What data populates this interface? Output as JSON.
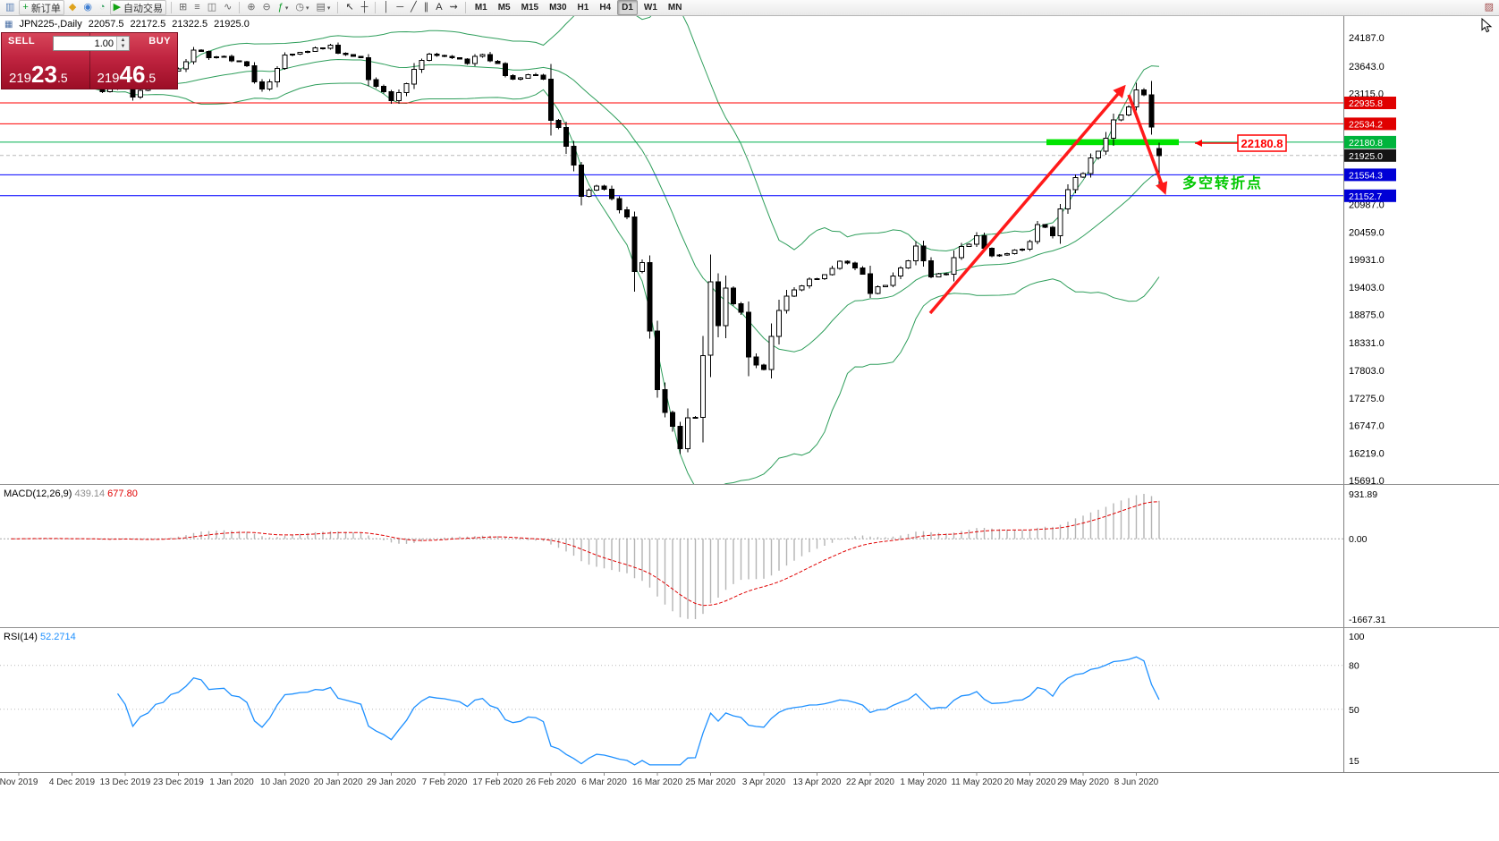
{
  "toolbar": {
    "items": [
      {
        "type": "icon",
        "name": "charts-toolbar-handle",
        "glyph": "▥",
        "color": "#5a7fb5"
      },
      {
        "type": "button",
        "name": "new-order-button",
        "glyph": "+",
        "color": "#0f9d2a",
        "label": "新订单"
      },
      {
        "type": "icon",
        "name": "metaeditor-icon",
        "glyph": "◆",
        "color": "#dfa31d"
      },
      {
        "type": "icon",
        "name": "profiles-icon",
        "glyph": "◉",
        "color": "#3f7fd2"
      },
      {
        "type": "icon",
        "name": "market-watch-icon",
        "glyph": "◔",
        "color": "#2e9e5b"
      },
      {
        "type": "button",
        "name": "autotrading-button",
        "glyph": "▶",
        "color": "#12a312",
        "label": "自动交易"
      },
      {
        "type": "sep"
      },
      {
        "type": "icon",
        "name": "tile-windows-icon",
        "glyph": "⊞",
        "color": "#666666"
      },
      {
        "type": "icon",
        "name": "bar-chart-icon",
        "glyph": "≡",
        "color": "#666666"
      },
      {
        "type": "icon",
        "name": "candlestick-chart-icon",
        "glyph": "◫",
        "color": "#666666"
      },
      {
        "type": "icon",
        "name": "line-chart-icon",
        "glyph": "∿",
        "color": "#666666"
      },
      {
        "type": "sep"
      },
      {
        "type": "icon",
        "name": "zoom-in-icon",
        "glyph": "⊕",
        "color": "#666666"
      },
      {
        "type": "icon",
        "name": "zoom-out-icon",
        "glyph": "⊖",
        "color": "#666666"
      },
      {
        "type": "icon",
        "name": "indicators-icon",
        "glyph": "ƒ",
        "color": "#0f9d2a",
        "dropdown": true
      },
      {
        "type": "icon",
        "name": "periods-icon",
        "glyph": "◷",
        "color": "#666666",
        "dropdown": true
      },
      {
        "type": "icon",
        "name": "templates-icon",
        "glyph": "▤",
        "color": "#666666",
        "dropdown": true
      },
      {
        "type": "sep"
      },
      {
        "type": "icon",
        "name": "cursor-icon",
        "glyph": "↖",
        "color": "#333333"
      },
      {
        "type": "icon",
        "name": "crosshair-icon",
        "glyph": "┼",
        "color": "#333333"
      },
      {
        "type": "sep"
      },
      {
        "type": "icon",
        "name": "vertical-line-icon",
        "glyph": "│",
        "color": "#333333"
      },
      {
        "type": "icon",
        "name": "horizontal-line-icon",
        "glyph": "─",
        "color": "#333333"
      },
      {
        "type": "icon",
        "name": "trendline-icon",
        "glyph": "╱",
        "color": "#333333"
      },
      {
        "type": "icon",
        "name": "equidistant-channel-icon",
        "glyph": "∥",
        "color": "#333333"
      },
      {
        "type": "icon",
        "name": "text-tool-icon",
        "glyph": "A",
        "color": "#333333"
      },
      {
        "type": "icon",
        "name": "arrows-tool-icon",
        "glyph": "⇝",
        "color": "#333333"
      },
      {
        "type": "sep"
      },
      {
        "type": "timeframes"
      },
      {
        "type": "spacer"
      },
      {
        "type": "icon",
        "name": "chart-properties-icon",
        "glyph": "▨",
        "color": "#a04848"
      }
    ],
    "timeframes": [
      "M1",
      "M5",
      "M15",
      "M30",
      "H1",
      "H4",
      "D1",
      "W1",
      "MN"
    ],
    "active_timeframe": "D1"
  },
  "icons": {
    "chart-title-icon": "▦"
  },
  "chart": {
    "symbol_period": "JPN225-,Daily",
    "ohlc": {
      "open": "22057.5",
      "high": "22172.5",
      "low": "21322.5",
      "close": "21925.0"
    }
  },
  "trade_panel": {
    "sell_label": "SELL",
    "buy_label": "BUY",
    "volume": "1.00",
    "sell_price_prefix": "219",
    "sell_price_big": "23",
    "sell_price_suffix": ".5",
    "buy_price_prefix": "219",
    "buy_price_big": "46",
    "buy_price_suffix": ".5"
  },
  "price_scale": {
    "ticks": [
      24187.0,
      23643.0,
      23115.0,
      20987.0,
      20459.0,
      19931.0,
      19403.0,
      18875.0,
      18331.0,
      17803.0,
      17275.0,
      16747.0,
      16219.0,
      15691.0
    ],
    "tags": [
      {
        "label": "22935.8",
        "price": 22935.8,
        "color": "#e00000"
      },
      {
        "label": "22534.2",
        "price": 22534.2,
        "color": "#e00000"
      },
      {
        "label": "22180.8",
        "price": 22180.8,
        "color": "#00b43c"
      },
      {
        "label": "21925.0",
        "price": 21925.0,
        "color": "#141414"
      },
      {
        "label": "21554.3",
        "price": 21554.3,
        "color": "#0000d6"
      },
      {
        "label": "21152.7",
        "price": 21152.7,
        "color": "#0000d6"
      }
    ]
  },
  "hlines": [
    {
      "price": 22935.8,
      "color": "#ff0000"
    },
    {
      "price": 22534.2,
      "color": "#ff0000"
    },
    {
      "price": 22180.8,
      "color": "#00b050"
    },
    {
      "price": 21554.3,
      "color": "#0000ff"
    },
    {
      "price": 21152.7,
      "color": "#0000ff"
    }
  ],
  "current_price": {
    "label": "21925.0",
    "price": 21925.0
  },
  "annotations": {
    "price_label": "22180.8",
    "price_label_color": "#ff0000",
    "turning_point_text": "多空转折点",
    "turning_point_color": "#00c800",
    "highlight_color": "#00e400",
    "trend_arrow_color": "#ff1a1a"
  },
  "indicators": {
    "macd": {
      "label": "MACD(12,26,9)",
      "value_main": "439.14",
      "value_signal": "677.80",
      "scale_max_label": "931.89",
      "scale_zero_label": "0.00",
      "scale_min_label": "-1667.31",
      "histogram_color": "#b4b4b4",
      "signal_color": "#e00000"
    },
    "rsi": {
      "label": "RSI(14)",
      "value": "52.2714",
      "color": "#1e90ff",
      "scale_labels": [
        "100",
        "80",
        "50",
        "15"
      ],
      "levels": [
        80,
        50
      ]
    }
  },
  "chart_data": {
    "type": "candlestick",
    "symbol": "JPN225-",
    "timeframe": "Daily",
    "num_candles": 152,
    "ylim": [
      15623,
      24600
    ],
    "x_labels": [
      "Nov 2019",
      "4 Dec 2019",
      "13 Dec 2019",
      "23 Dec 2019",
      "1 Jan 2020",
      "10 Jan 2020",
      "20 Jan 2020",
      "29 Jan 2020",
      "7 Feb 2020",
      "17 Feb 2020",
      "26 Feb 2020",
      "6 Mar 2020",
      "16 Mar 2020",
      "25 Mar 2020",
      "3 Apr 2020",
      "13 Apr 2020",
      "22 Apr 2020",
      "1 May 2020",
      "11 May 2020",
      "20 May 2020",
      "29 May 2020",
      "8 Jun 2020"
    ],
    "close_keypoints": [
      [
        0,
        23300
      ],
      [
        3,
        23380
      ],
      [
        6,
        23250
      ],
      [
        9,
        23320
      ],
      [
        12,
        23150
      ],
      [
        14,
        23480
      ],
      [
        16,
        23050
      ],
      [
        18,
        23230
      ],
      [
        20,
        23400
      ],
      [
        22,
        23590
      ],
      [
        24,
        23950
      ],
      [
        26,
        23800
      ],
      [
        28,
        23830
      ],
      [
        31,
        23650
      ],
      [
        33,
        23200
      ],
      [
        36,
        23850
      ],
      [
        39,
        23920
      ],
      [
        42,
        24040
      ],
      [
        44,
        23860
      ],
      [
        46,
        23800
      ],
      [
        48,
        23250
      ],
      [
        50,
        22980
      ],
      [
        52,
        23300
      ],
      [
        55,
        23870
      ],
      [
        57,
        23830
      ],
      [
        60,
        23690
      ],
      [
        62,
        23860
      ],
      [
        64,
        23690
      ],
      [
        66,
        23390
      ],
      [
        68,
        23480
      ],
      [
        70,
        23390
      ],
      [
        71,
        22600
      ],
      [
        73,
        22100
      ],
      [
        75,
        21140
      ],
      [
        77,
        21340
      ],
      [
        79,
        21100
      ],
      [
        81,
        20750
      ],
      [
        82,
        19700
      ],
      [
        83,
        19870
      ],
      [
        84,
        18560
      ],
      [
        85,
        17430
      ],
      [
        86,
        17000
      ],
      [
        87,
        16730
      ],
      [
        88,
        16300
      ],
      [
        89,
        16890
      ],
      [
        90,
        16900
      ],
      [
        91,
        18090
      ],
      [
        92,
        19500
      ],
      [
        93,
        18660
      ],
      [
        94,
        19380
      ],
      [
        95,
        19080
      ],
      [
        96,
        18920
      ],
      [
        97,
        18060
      ],
      [
        99,
        17820
      ],
      [
        101,
        18950
      ],
      [
        103,
        19350
      ],
      [
        105,
        19550
      ],
      [
        107,
        19640
      ],
      [
        109,
        19900
      ],
      [
        111,
        19770
      ],
      [
        113,
        19280
      ],
      [
        115,
        19430
      ],
      [
        117,
        19770
      ],
      [
        119,
        20190
      ],
      [
        121,
        19600
      ],
      [
        123,
        19650
      ],
      [
        125,
        20180
      ],
      [
        127,
        20390
      ],
      [
        129,
        20000
      ],
      [
        131,
        20040
      ],
      [
        133,
        20130
      ],
      [
        135,
        20600
      ],
      [
        137,
        20390
      ],
      [
        139,
        21270
      ],
      [
        141,
        21580
      ],
      [
        142,
        21880
      ],
      [
        144,
        22260
      ],
      [
        145,
        22610
      ],
      [
        146,
        22700
      ],
      [
        147,
        22860
      ],
      [
        148,
        23180
      ],
      [
        149,
        23090
      ],
      [
        150,
        22470
      ],
      [
        151,
        21925
      ]
    ],
    "last_candle": {
      "open": 22057.5,
      "high": 22172.5,
      "low": 21322.5,
      "close": 21925.0
    },
    "bollinger": {
      "period": 20,
      "deviation": 2,
      "color": "#2e9e5b"
    },
    "macd_scale": {
      "max": 931.89,
      "min": -1667.31
    },
    "rsi_scale": {
      "max": 100,
      "min": 15
    }
  }
}
